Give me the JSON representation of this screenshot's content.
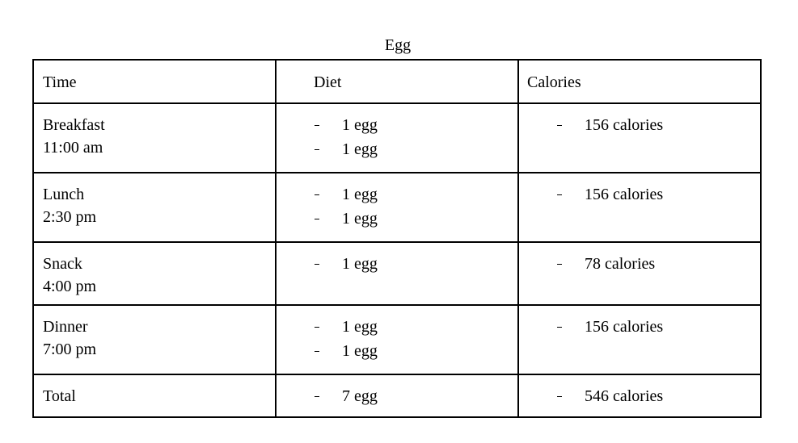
{
  "title": "Egg",
  "table": {
    "header": [
      "Time",
      "Diet",
      "Calories"
    ],
    "rows": [
      {
        "time": [
          "Breakfast",
          "11:00 am"
        ],
        "diet": [
          "1 egg",
          "1 egg"
        ],
        "calories": [
          "156 calories"
        ]
      },
      {
        "time": [
          "Lunch",
          "2:30 pm"
        ],
        "diet": [
          "1 egg",
          "1 egg"
        ],
        "calories": [
          "156 calories"
        ]
      },
      {
        "time": [
          "Snack",
          "4:00 pm"
        ],
        "diet": [
          "1 egg"
        ],
        "calories": [
          "78 calories"
        ]
      },
      {
        "time": [
          "Dinner",
          "7:00 pm"
        ],
        "diet": [
          "1 egg",
          "1 egg"
        ],
        "calories": [
          "156 calories"
        ]
      },
      {
        "time": [
          "Total"
        ],
        "diet": [
          "7 egg"
        ],
        "calories": [
          "546 calories"
        ]
      }
    ]
  }
}
